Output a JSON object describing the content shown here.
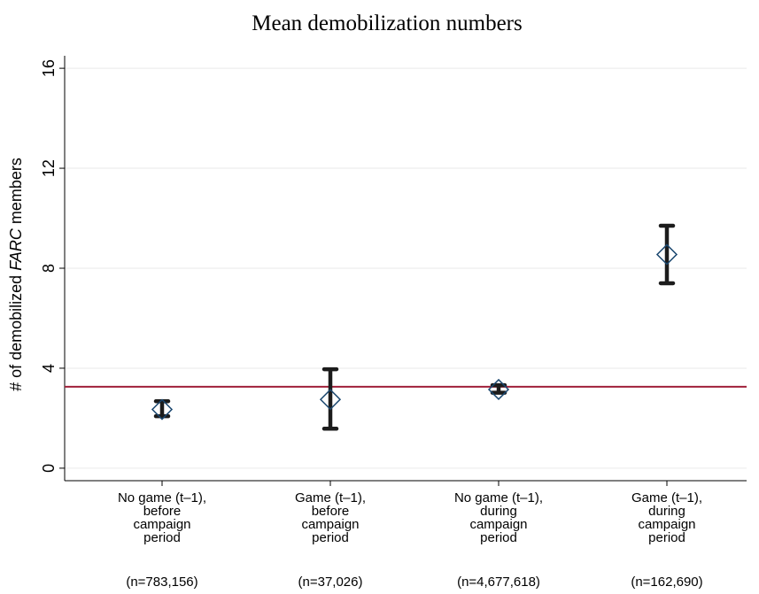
{
  "chart_data": {
    "type": "errorbar",
    "title": "Mean demobilization numbers",
    "ylabel": [
      "# of demobilized ",
      "FARC",
      " members"
    ],
    "categories": [
      [
        "No game (t–1),",
        "before",
        "campaign",
        "period"
      ],
      [
        "Game (t–1),",
        "before",
        "campaign",
        "period"
      ],
      [
        "No game (t–1),",
        "during",
        "campaign",
        "period"
      ],
      [
        "Game (t–1),",
        "during",
        "campaign",
        "period"
      ]
    ],
    "n_labels": [
      "(n=783,156)",
      "(n=37,026)",
      "(n=4,677,618)",
      "(n=162,690)"
    ],
    "series": [
      {
        "color": "#1a476f",
        "values": [
          2.35,
          2.75,
          3.15,
          8.55
        ],
        "lower": [
          2.08,
          1.58,
          3.02,
          7.4
        ],
        "upper": [
          2.68,
          3.96,
          3.32,
          9.7
        ],
        "bar_color": "#1c1c1c"
      }
    ],
    "reference_line": {
      "value": 3.26,
      "color": "#a0203a"
    },
    "ylim": [
      -0.5,
      16.5
    ],
    "yticks": [
      0,
      4,
      8,
      12,
      16
    ],
    "grid": true
  }
}
